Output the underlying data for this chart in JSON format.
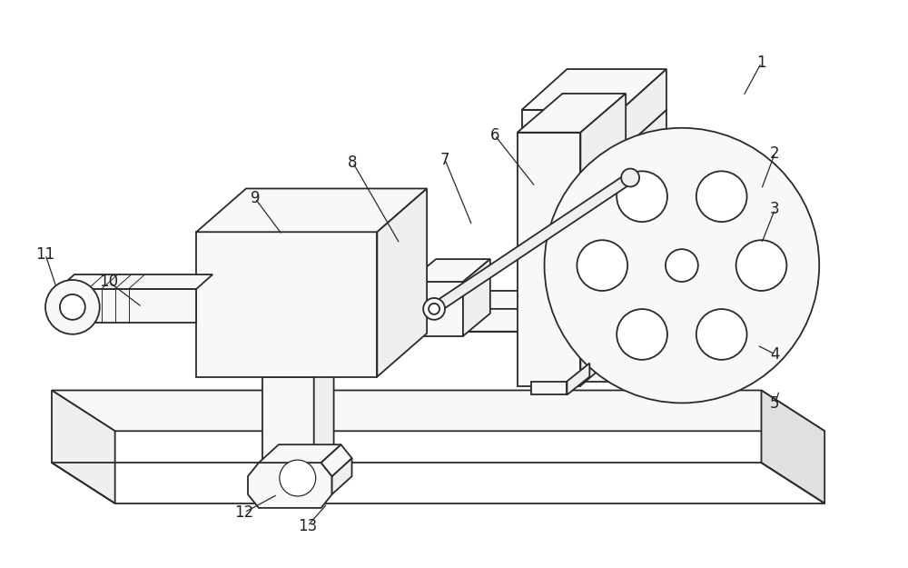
{
  "figsize": [
    10.0,
    6.25
  ],
  "dpi": 100,
  "bg_color": "#ffffff",
  "lc": "#2a2a2a",
  "lw": 1.3,
  "fill_light": "#f8f8f8",
  "fill_mid": "#efefef",
  "fill_dark": "#e0e0e0",
  "label_fontsize": 12,
  "label_color": "#222222"
}
